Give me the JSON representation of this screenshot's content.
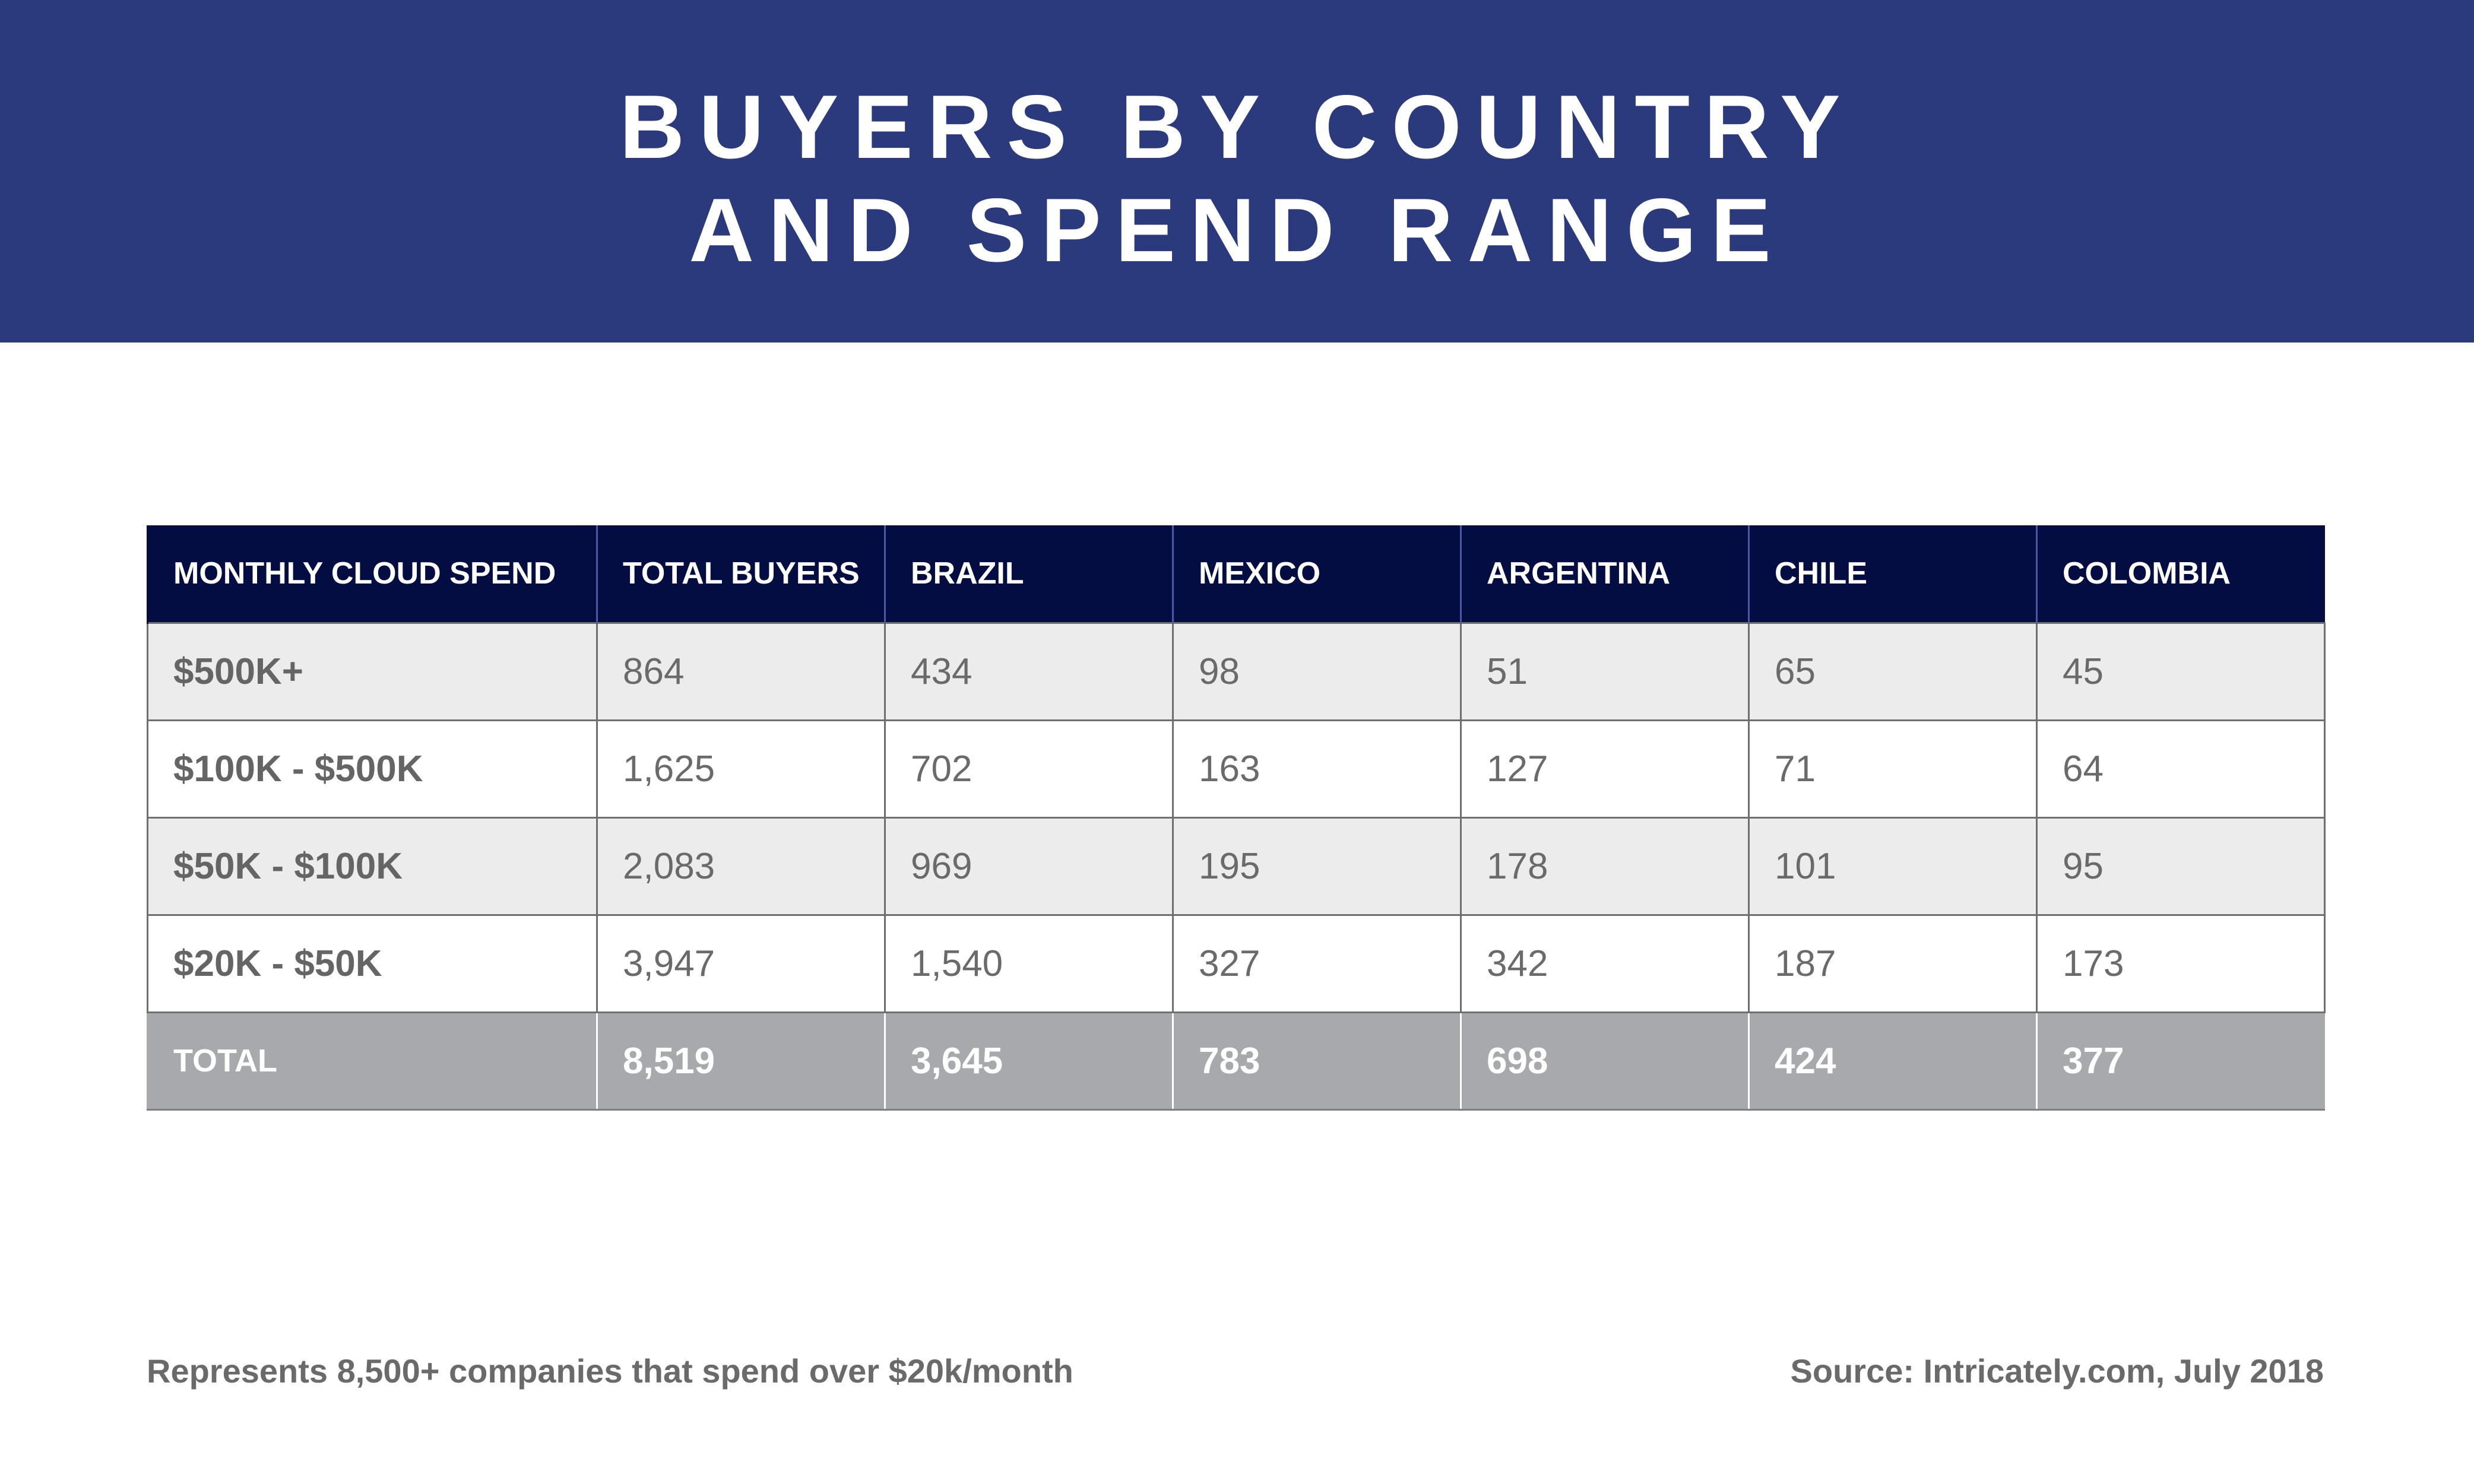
{
  "header": {
    "title_line1": "BUYERS BY COUNTRY",
    "title_line2": "AND SPEND RANGE",
    "background_color": "#2b397d"
  },
  "chart_data": {
    "type": "table",
    "title": "BUYERS BY COUNTRY AND SPEND RANGE",
    "columns": [
      "MONTHLY CLOUD SPEND",
      "TOTAL BUYERS",
      "BRAZIL",
      "MEXICO",
      "ARGENTINA",
      "CHILE",
      "COLOMBIA"
    ],
    "rows": [
      [
        "$500K+",
        "864",
        "434",
        "98",
        "51",
        "65",
        "45"
      ],
      [
        "$100K - $500K",
        "1,625",
        "702",
        "163",
        "127",
        "71",
        "64"
      ],
      [
        "$50K - $100K",
        "2,083",
        "969",
        "195",
        "178",
        "101",
        "95"
      ],
      [
        "$20K - $50K",
        "3,947",
        "1,540",
        "327",
        "342",
        "187",
        "173"
      ]
    ],
    "total_row": [
      "TOTAL",
      "8,519",
      "3,645",
      "783",
      "698",
      "424",
      "377"
    ],
    "colors": {
      "header_row": "#040d42",
      "odd_row": "#ececec",
      "even_row": "#ffffff",
      "total_row": "#a8a9ad"
    }
  },
  "footer": {
    "note": "Represents 8,500+ companies that spend over $20k/month",
    "source": "Source: Intricately.com, July 2018"
  }
}
